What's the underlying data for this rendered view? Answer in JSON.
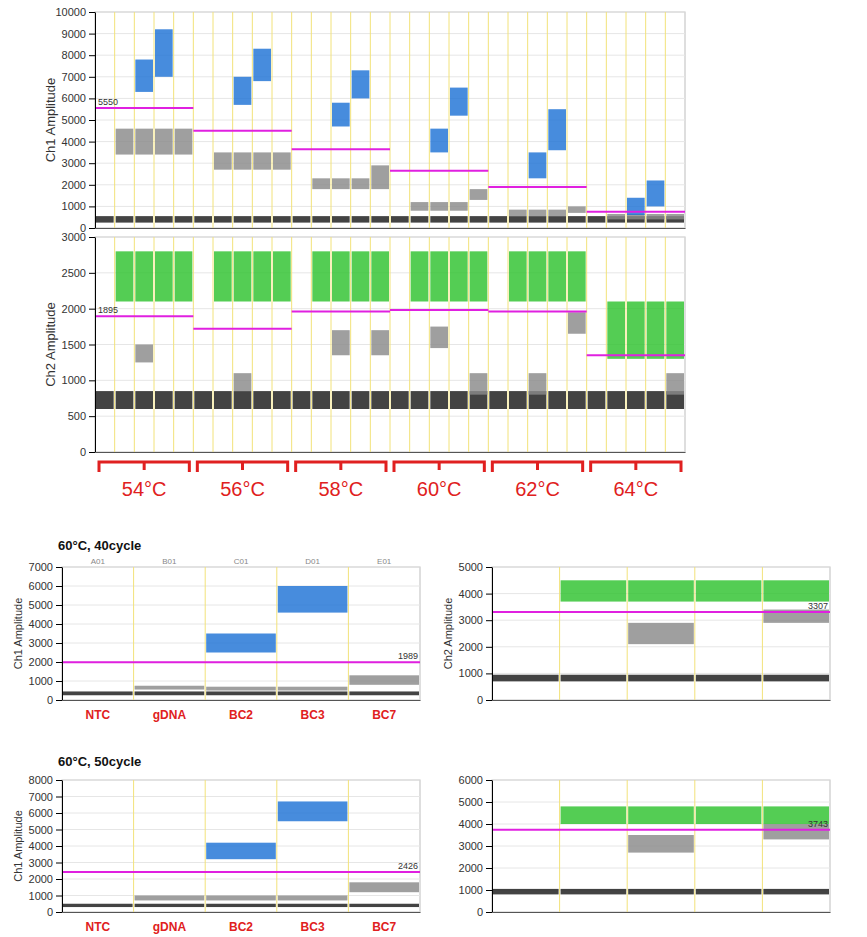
{
  "chart_data": [
    {
      "type": "scatter",
      "y_label": "Ch1 Amplitude",
      "categories": [
        null,
        null,
        null,
        null,
        null,
        null,
        null,
        null,
        null,
        null,
        null,
        null,
        null,
        null,
        null,
        null,
        null,
        null,
        null,
        null,
        null,
        null,
        null,
        null,
        null,
        null,
        null,
        null,
        null,
        null
      ],
      "ylim": [
        0,
        10000
      ],
      "yticks": [
        0,
        1000,
        2000,
        3000,
        4000,
        5000,
        6000,
        7000,
        8000,
        9000,
        10000
      ],
      "bands": [
        {
          "color": "#1a1a1a",
          "lo": [
            250,
            250,
            250,
            250,
            250,
            250,
            250,
            250,
            250,
            250,
            250,
            250,
            250,
            250,
            250,
            250,
            250,
            250,
            250,
            250,
            250,
            250,
            250,
            250,
            250,
            250,
            250,
            250,
            250,
            250
          ],
          "hi": [
            550,
            550,
            550,
            550,
            550,
            550,
            550,
            550,
            550,
            550,
            550,
            550,
            550,
            550,
            550,
            550,
            550,
            550,
            550,
            550,
            550,
            550,
            550,
            550,
            550,
            550,
            550,
            550,
            550,
            550
          ]
        },
        {
          "color": "#8a8a8a",
          "lo": [
            null,
            3400,
            3400,
            3400,
            3400,
            null,
            2700,
            2700,
            2700,
            2700,
            null,
            1800,
            1800,
            1800,
            1800,
            null,
            800,
            800,
            800,
            1300,
            null,
            550,
            550,
            550,
            700,
            null,
            400,
            400,
            400,
            400
          ],
          "hi": [
            null,
            4600,
            4600,
            4600,
            4600,
            null,
            3500,
            3500,
            3500,
            3500,
            null,
            2300,
            2300,
            2300,
            2900,
            null,
            1200,
            1200,
            1200,
            1800,
            null,
            850,
            850,
            850,
            1000,
            null,
            650,
            650,
            650,
            650
          ]
        },
        {
          "color": "#1f73d6",
          "lo": [
            null,
            null,
            6300,
            7000,
            null,
            null,
            null,
            5700,
            6800,
            null,
            null,
            null,
            4700,
            6000,
            null,
            null,
            null,
            3500,
            5200,
            null,
            null,
            null,
            2300,
            3600,
            null,
            null,
            null,
            600,
            1000,
            null
          ],
          "hi": [
            null,
            null,
            7800,
            9200,
            null,
            null,
            null,
            7000,
            8300,
            null,
            null,
            null,
            5800,
            7300,
            null,
            null,
            null,
            4600,
            6500,
            null,
            null,
            null,
            3500,
            5500,
            null,
            null,
            null,
            1400,
            2200,
            null
          ]
        }
      ],
      "thresholds": [
        {
          "value": 5550,
          "from": 0,
          "to": 5,
          "label": "5550"
        },
        {
          "value": 4500,
          "from": 5,
          "to": 10
        },
        {
          "value": 3650,
          "from": 10,
          "to": 15
        },
        {
          "value": 2650,
          "from": 15,
          "to": 20
        },
        {
          "value": 1900,
          "from": 20,
          "to": 25
        },
        {
          "value": 750,
          "from": 25,
          "to": 30
        }
      ]
    },
    {
      "type": "scatter",
      "y_label": "Ch2 Amplitude",
      "categories": [
        null,
        null,
        null,
        null,
        null,
        null,
        null,
        null,
        null,
        null,
        null,
        null,
        null,
        null,
        null,
        null,
        null,
        null,
        null,
        null,
        null,
        null,
        null,
        null,
        null,
        null,
        null,
        null,
        null,
        null
      ],
      "ylim": [
        0,
        3000
      ],
      "yticks": [
        0,
        500,
        1000,
        1500,
        2000,
        2500,
        3000
      ],
      "bands": [
        {
          "color": "#1a1a1a",
          "lo": [
            600,
            600,
            600,
            600,
            600,
            600,
            600,
            600,
            600,
            600,
            600,
            600,
            600,
            600,
            600,
            600,
            600,
            600,
            600,
            600,
            600,
            600,
            600,
            600,
            600,
            600,
            600,
            600,
            600,
            600
          ],
          "hi": [
            850,
            850,
            850,
            850,
            850,
            850,
            850,
            850,
            850,
            850,
            850,
            850,
            850,
            850,
            850,
            850,
            850,
            850,
            850,
            850,
            850,
            850,
            850,
            850,
            850,
            850,
            850,
            850,
            850,
            850
          ]
        },
        {
          "color": "#8a8a8a",
          "lo": [
            null,
            null,
            1250,
            null,
            null,
            null,
            null,
            850,
            null,
            null,
            null,
            null,
            1350,
            null,
            1350,
            null,
            null,
            1450,
            null,
            800,
            null,
            null,
            800,
            null,
            1650,
            null,
            null,
            null,
            null,
            800
          ],
          "hi": [
            null,
            null,
            1500,
            null,
            null,
            null,
            null,
            1100,
            null,
            null,
            null,
            null,
            1700,
            null,
            1700,
            null,
            null,
            1750,
            null,
            1100,
            null,
            null,
            1100,
            null,
            1950,
            null,
            null,
            null,
            null,
            1100
          ]
        },
        {
          "color": "#2ec22e",
          "lo": [
            null,
            2100,
            2100,
            2100,
            2100,
            null,
            2100,
            2100,
            2100,
            2100,
            null,
            2100,
            2100,
            2100,
            2100,
            null,
            2100,
            2100,
            2100,
            2100,
            null,
            2100,
            2100,
            2100,
            2100,
            null,
            1300,
            1300,
            1300,
            1300
          ],
          "hi": [
            null,
            2800,
            2800,
            2800,
            2800,
            null,
            2800,
            2800,
            2800,
            2800,
            null,
            2800,
            2800,
            2800,
            2800,
            null,
            2800,
            2800,
            2800,
            2800,
            null,
            2800,
            2800,
            2800,
            2800,
            null,
            2100,
            2100,
            2100,
            2100
          ]
        }
      ],
      "thresholds": [
        {
          "value": 1895,
          "from": 0,
          "to": 5,
          "label": "1895"
        },
        {
          "value": 1720,
          "from": 5,
          "to": 10
        },
        {
          "value": 1960,
          "from": 10,
          "to": 15
        },
        {
          "value": 1980,
          "from": 15,
          "to": 20
        },
        {
          "value": 1960,
          "from": 20,
          "to": 25
        },
        {
          "value": 1350,
          "from": 25,
          "to": 30
        }
      ],
      "groups": [
        {
          "label": "54°C",
          "from": 0,
          "to": 5
        },
        {
          "label": "56°C",
          "from": 5,
          "to": 10
        },
        {
          "label": "58°C",
          "from": 10,
          "to": 15
        },
        {
          "label": "60°C",
          "from": 15,
          "to": 20
        },
        {
          "label": "62°C",
          "from": 20,
          "to": 25
        },
        {
          "label": "64°C",
          "from": 25,
          "to": 30
        }
      ]
    },
    {
      "type": "scatter",
      "title": "60°C, 40cycle",
      "y_label": "Ch1 Amplitude",
      "categories": [
        "NTC",
        "gDNA",
        "BC2",
        "BC3",
        "BC7"
      ],
      "well_ids": [
        "A01",
        "B01",
        "C01",
        "D01",
        "E01"
      ],
      "ylim": [
        0,
        7000
      ],
      "yticks": [
        0,
        1000,
        2000,
        3000,
        4000,
        5000,
        6000,
        7000
      ],
      "bands": [
        {
          "color": "#1a1a1a",
          "lo": [
            250,
            250,
            250,
            250,
            250
          ],
          "hi": [
            450,
            450,
            450,
            450,
            450
          ]
        },
        {
          "color": "#8a8a8a",
          "lo": [
            null,
            550,
            500,
            500,
            800
          ],
          "hi": [
            null,
            750,
            700,
            700,
            1300
          ]
        },
        {
          "color": "#1f73d6",
          "lo": [
            null,
            null,
            2500,
            4600,
            null
          ],
          "hi": [
            null,
            null,
            3500,
            6000,
            null
          ]
        }
      ],
      "thresholds": [
        {
          "value": 1989,
          "from": 0,
          "to": 5,
          "label": "1989"
        }
      ]
    },
    {
      "type": "scatter",
      "y_label": "Ch2 Amplitude",
      "categories": [
        null,
        null,
        null,
        null,
        null
      ],
      "ylim": [
        0,
        5000
      ],
      "yticks": [
        0,
        1000,
        2000,
        3000,
        4000,
        5000
      ],
      "bands": [
        {
          "color": "#1a1a1a",
          "lo": [
            700,
            700,
            700,
            700,
            700
          ],
          "hi": [
            950,
            950,
            950,
            950,
            950
          ]
        },
        {
          "color": "#8a8a8a",
          "lo": [
            null,
            null,
            2100,
            null,
            2900
          ],
          "hi": [
            null,
            null,
            2900,
            null,
            3400
          ]
        },
        {
          "color": "#2ec22e",
          "lo": [
            null,
            3700,
            3700,
            3700,
            3700
          ],
          "hi": [
            null,
            4500,
            4500,
            4500,
            4500
          ]
        }
      ],
      "thresholds": [
        {
          "value": 3307,
          "from": 0,
          "to": 5,
          "label": "3307"
        }
      ]
    },
    {
      "type": "scatter",
      "title": "60°C, 50cycle",
      "y_label": "Ch1 Amplitude",
      "categories": [
        "NTC",
        "gDNA",
        "BC2",
        "BC3",
        "BC7"
      ],
      "ylim": [
        0,
        8000
      ],
      "yticks": [
        0,
        1000,
        2000,
        3000,
        4000,
        5000,
        6000,
        7000,
        8000
      ],
      "bands": [
        {
          "color": "#1a1a1a",
          "lo": [
            300,
            300,
            300,
            300,
            300
          ],
          "hi": [
            500,
            500,
            500,
            500,
            500
          ]
        },
        {
          "color": "#8a8a8a",
          "lo": [
            null,
            700,
            700,
            700,
            1200
          ],
          "hi": [
            null,
            1000,
            1000,
            1000,
            1800
          ]
        },
        {
          "color": "#1f73d6",
          "lo": [
            null,
            null,
            3200,
            5500,
            null
          ],
          "hi": [
            null,
            null,
            4200,
            6700,
            null
          ]
        }
      ],
      "thresholds": [
        {
          "value": 2426,
          "from": 0,
          "to": 5,
          "label": "2426"
        }
      ]
    },
    {
      "type": "scatter",
      "categories": [
        null,
        null,
        null,
        null,
        null
      ],
      "ylim": [
        0,
        6000
      ],
      "yticks": [
        0,
        1000,
        2000,
        3000,
        4000,
        5000,
        6000
      ],
      "bands": [
        {
          "color": "#1a1a1a",
          "lo": [
            800,
            800,
            800,
            800,
            800
          ],
          "hi": [
            1050,
            1050,
            1050,
            1050,
            1050
          ]
        },
        {
          "color": "#8a8a8a",
          "lo": [
            null,
            null,
            2700,
            null,
            3300
          ],
          "hi": [
            null,
            null,
            3500,
            null,
            4000
          ]
        },
        {
          "color": "#2ec22e",
          "lo": [
            null,
            4000,
            4000,
            4000,
            4000
          ],
          "hi": [
            null,
            4800,
            4800,
            4800,
            4800
          ]
        }
      ],
      "thresholds": [
        {
          "value": 3743,
          "from": 0,
          "to": 5,
          "label": "3743"
        }
      ]
    }
  ]
}
